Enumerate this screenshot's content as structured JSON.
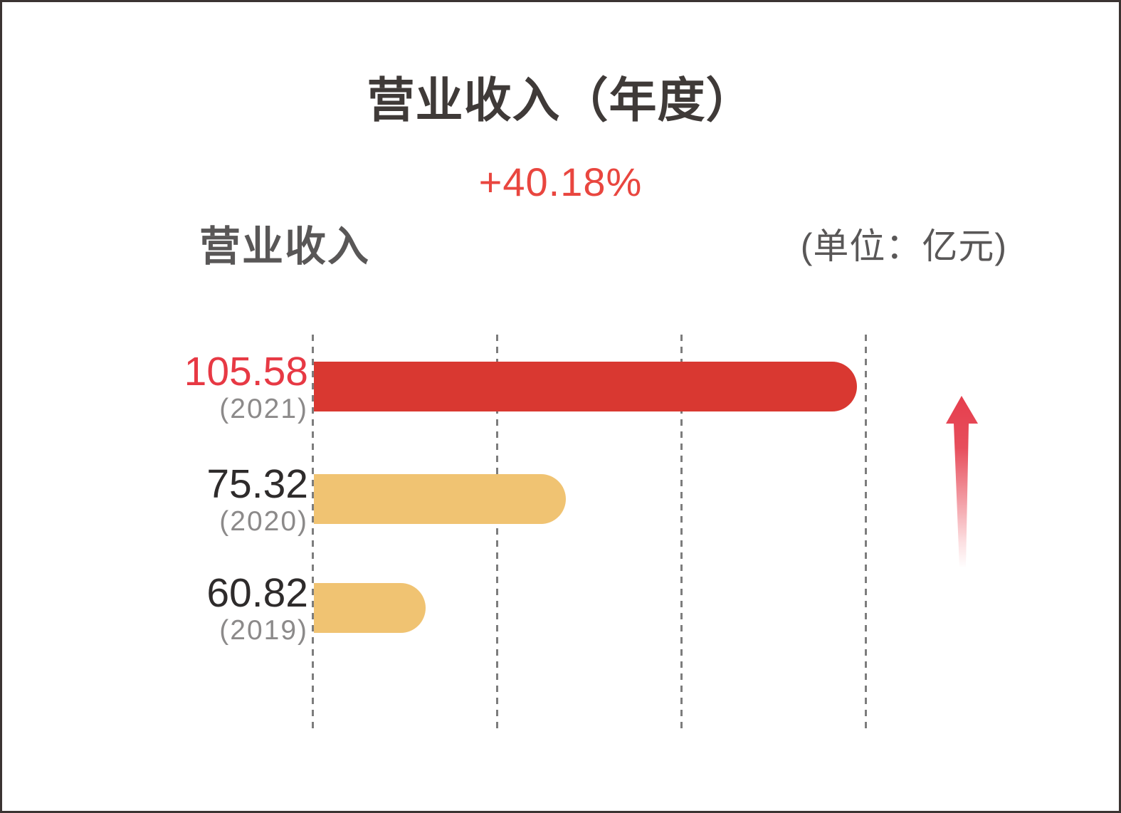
{
  "chart_data": {
    "type": "bar",
    "orientation": "horizontal",
    "title": "营业收入（年度）",
    "growth_label": "+40.18%",
    "series_label": "营业收入",
    "unit_label": "(单位：亿元)",
    "categories": [
      "2021",
      "2020",
      "2019"
    ],
    "values": [
      105.58,
      75.32,
      60.82
    ],
    "value_labels": [
      "105.58",
      "75.32",
      "60.82"
    ],
    "year_labels": [
      "(2021)",
      "(2020)",
      "(2019)"
    ],
    "bar_colors": [
      "#d93831",
      "#f0c372",
      "#f0c372"
    ],
    "value_colors": [
      "#e73944",
      "#2e2b2b",
      "#2e2b2b"
    ],
    "xlim": [
      49.2,
      106.6
    ],
    "gridline_count": 4,
    "grid_style": "dotted-vertical",
    "legend_position": "none",
    "annotations": [
      "upward-red-growth-arrow"
    ]
  },
  "colors": {
    "background": "#ffffff",
    "border": "#3b3432",
    "title_text": "#3f3a38",
    "growth_text": "#e9463f",
    "label_text": "#595757",
    "year_text": "#8c8a8a",
    "gridline": "#7d7d7d",
    "arrow_red": "#e63f4e"
  }
}
